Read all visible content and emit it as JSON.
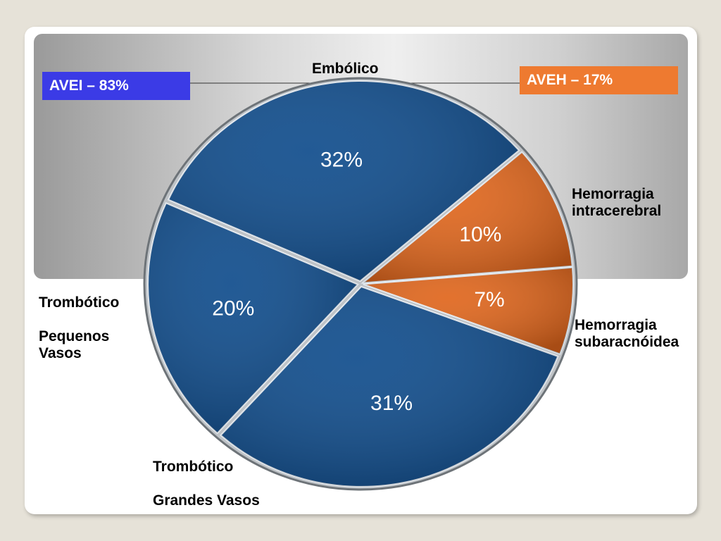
{
  "chart_data": {
    "type": "pie",
    "categories": [
      "Embólico",
      "Hemorragia\nintracerebral",
      "Hemorragia\nsubaracnóidea",
      "Trombótico\n\nGrandes Vasos",
      "Trombótico\n\nPequenos\nVasos"
    ],
    "values": [
      32,
      10,
      7,
      31,
      20
    ],
    "value_labels": [
      "32%",
      "10%",
      "7%",
      "31%",
      "20%"
    ],
    "colors": [
      "#0f4c8c",
      "#e0661c",
      "#e0661c",
      "#0f4c8c",
      "#0f4c8c"
    ],
    "annotations": [
      {
        "text": "AVEI – 83%",
        "color": "#3b3be6"
      },
      {
        "text": "AVEH – 17%",
        "color": "#ee7a30"
      }
    ]
  }
}
